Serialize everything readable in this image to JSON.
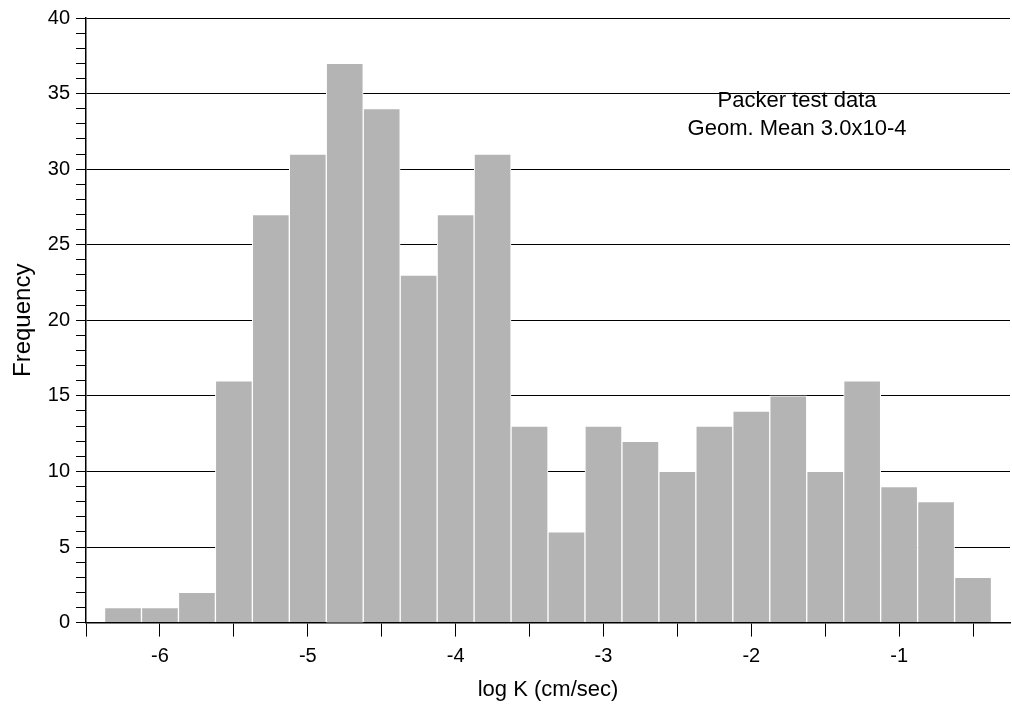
{
  "chart_data": {
    "type": "histogram",
    "xlabel": "log K (cm/sec)",
    "ylabel": "Frequency",
    "annotations": [
      "Packer test data",
      "Geom. Mean 3.0x10-4"
    ],
    "bins": [
      -6.375,
      -6.125,
      -5.875,
      -5.625,
      -5.375,
      -5.125,
      -4.875,
      -4.625,
      -4.375,
      -4.125,
      -3.875,
      -3.625,
      -3.375,
      -3.125,
      -2.875,
      -2.625,
      -2.375,
      -2.125,
      -1.875,
      -1.625,
      -1.375,
      -1.125,
      -0.875,
      -0.625,
      -0.375
    ],
    "values": [
      1,
      1,
      2,
      16,
      27,
      31,
      37,
      34,
      23,
      27,
      31,
      13,
      6,
      13,
      12,
      10,
      13,
      14,
      15,
      10,
      16,
      9,
      8,
      3
    ],
    "color": "#b4b4b4",
    "xlim": [
      -6.5,
      -0.25
    ],
    "xticks": [
      {
        "value": -6.5,
        "label": null
      },
      -6,
      {
        "value": -5.5,
        "label": null
      },
      -5,
      {
        "value": -4.5,
        "label": null
      },
      -4,
      {
        "value": -3.5,
        "label": null
      },
      -3,
      {
        "value": -2.5,
        "label": null
      },
      -2,
      {
        "value": -1.5,
        "label": null
      },
      -1,
      {
        "value": -0.5,
        "label": null
      }
    ],
    "ylim": [
      0,
      40
    ],
    "yticks": [
      0,
      {
        "value": 1,
        "label": null
      },
      {
        "value": 2,
        "label": null
      },
      {
        "value": 3,
        "label": null
      },
      {
        "value": 4,
        "label": null
      },
      5,
      {
        "value": 6,
        "label": null
      },
      {
        "value": 7,
        "label": null
      },
      {
        "value": 8,
        "label": null
      },
      {
        "value": 9,
        "label": null
      },
      10,
      {
        "value": 11,
        "label": null
      },
      {
        "value": 12,
        "label": null
      },
      {
        "value": 13,
        "label": null
      },
      {
        "value": 14,
        "label": null
      },
      15,
      {
        "value": 16,
        "label": null
      },
      {
        "value": 17,
        "label": null
      },
      {
        "value": 18,
        "label": null
      },
      {
        "value": 19,
        "label": null
      },
      20,
      {
        "value": 21,
        "label": null
      },
      {
        "value": 22,
        "label": null
      },
      {
        "value": 23,
        "label": null
      },
      {
        "value": 24,
        "label": null
      },
      25,
      {
        "value": 26,
        "label": null
      },
      {
        "value": 27,
        "label": null
      },
      {
        "value": 28,
        "label": null
      },
      {
        "value": 29,
        "label": null
      },
      30,
      {
        "value": 31,
        "label": null
      },
      {
        "value": 32,
        "label": null
      },
      {
        "value": 33,
        "label": null
      },
      {
        "value": 34,
        "label": null
      },
      35,
      {
        "value": 36,
        "label": null
      },
      {
        "value": 37,
        "label": null
      },
      {
        "value": 38,
        "label": null
      },
      {
        "value": 39,
        "label": null
      },
      40
    ],
    "grid": "y",
    "legend": false
  }
}
